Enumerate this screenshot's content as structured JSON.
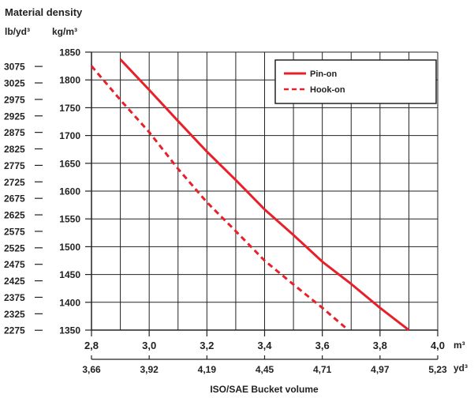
{
  "chart_data": {
    "type": "line",
    "title": "Material density",
    "xlabel": "ISO/SAE Bucket volume",
    "ylabel_left_outer": "lb/yd³",
    "ylabel_left_inner": "kg/m³",
    "x_unit_primary": "m³",
    "x_unit_secondary": "yd³",
    "xlim": [
      2.8,
      4.0
    ],
    "ylim": [
      1350,
      1850
    ],
    "x_ticks": [
      2.8,
      3.0,
      3.2,
      3.4,
      3.6,
      3.8,
      4.0
    ],
    "x_tick_labels": [
      "2,8",
      "3,0",
      "3,2",
      "3,4",
      "3,6",
      "3,8",
      "4,0"
    ],
    "x_secondary_tick_labels": [
      "3,66",
      "3,92",
      "4,19",
      "4,45",
      "4,71",
      "4,97",
      "5,23"
    ],
    "y_ticks": [
      1350,
      1400,
      1450,
      1500,
      1550,
      1600,
      1650,
      1700,
      1750,
      1800,
      1850
    ],
    "y_tick_labels": [
      "1350",
      "1400",
      "1450",
      "1500",
      "1550",
      "1600",
      "1650",
      "1700",
      "1750",
      "1800",
      "1850"
    ],
    "y_secondary_values": [
      2275,
      2325,
      2375,
      2425,
      2475,
      2525,
      2575,
      2625,
      2675,
      2725,
      2775,
      2825,
      2875,
      2925,
      2975,
      3025,
      3075
    ],
    "y_secondary_tick_labels": [
      "2275",
      "2325",
      "2375",
      "2425",
      "2475",
      "2525",
      "2575",
      "2625",
      "2675",
      "2725",
      "2775",
      "2825",
      "2875",
      "2925",
      "2975",
      "3025",
      "3075"
    ],
    "grid": true,
    "legend_position": "top-right",
    "series": [
      {
        "name": "Pin-on",
        "style": "solid",
        "color": "#e8202a",
        "x": [
          2.9,
          3.0,
          3.1,
          3.2,
          3.3,
          3.4,
          3.5,
          3.6,
          3.7,
          3.8,
          3.9
        ],
        "y": [
          1837,
          1782,
          1726,
          1671,
          1620,
          1567,
          1521,
          1473,
          1433,
          1390,
          1350
        ]
      },
      {
        "name": "Hook-on",
        "style": "dashed",
        "color": "#e8202a",
        "x": [
          2.8,
          2.9,
          3.0,
          3.1,
          3.2,
          3.3,
          3.4,
          3.5,
          3.6,
          3.69
        ],
        "y": [
          1825,
          1764,
          1706,
          1640,
          1580,
          1528,
          1475,
          1432,
          1390,
          1350
        ]
      }
    ]
  }
}
